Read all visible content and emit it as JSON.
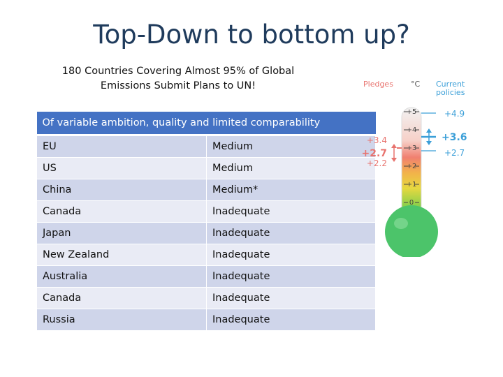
{
  "slide": {
    "title": "Top-Down to bottom up?",
    "subtitle_line1": "180 Countries Covering Almost 95% of Global",
    "subtitle_line2": "Emissions Submit Plans to UN!"
  },
  "table": {
    "header": "Of variable ambition, quality and limited comparability",
    "rows": [
      {
        "country": "EU",
        "rating": "Medium"
      },
      {
        "country": "US",
        "rating": "Medium"
      },
      {
        "country": "China",
        "rating": "Medium*"
      },
      {
        "country": "Canada",
        "rating": "Inadequate"
      },
      {
        "country": "Japan",
        "rating": "Inadequate"
      },
      {
        "country": "New Zealand",
        "rating": "Inadequate"
      },
      {
        "country": "Australia",
        "rating": "Inadequate"
      },
      {
        "country": "Canada",
        "rating": "Inadequate"
      },
      {
        "country": "Russia",
        "rating": "Inadequate"
      }
    ]
  },
  "thermometer": {
    "pledges_label": "Pledges",
    "unit_label": "°C",
    "current_label_line1": "Current",
    "current_label_line2": "policies",
    "scale": [
      "+5",
      "+4",
      "+3",
      "+2",
      "+1",
      "0"
    ],
    "pledges": {
      "high": "+3.4",
      "mid": "+2.7",
      "low": "+2.2"
    },
    "current": {
      "high": "+4.9",
      "mid": "+3.6",
      "low": "+2.7"
    },
    "colors": {
      "pledges": "#e8736e",
      "current": "#3b9fd8",
      "bulb": "#4cc46a"
    }
  }
}
